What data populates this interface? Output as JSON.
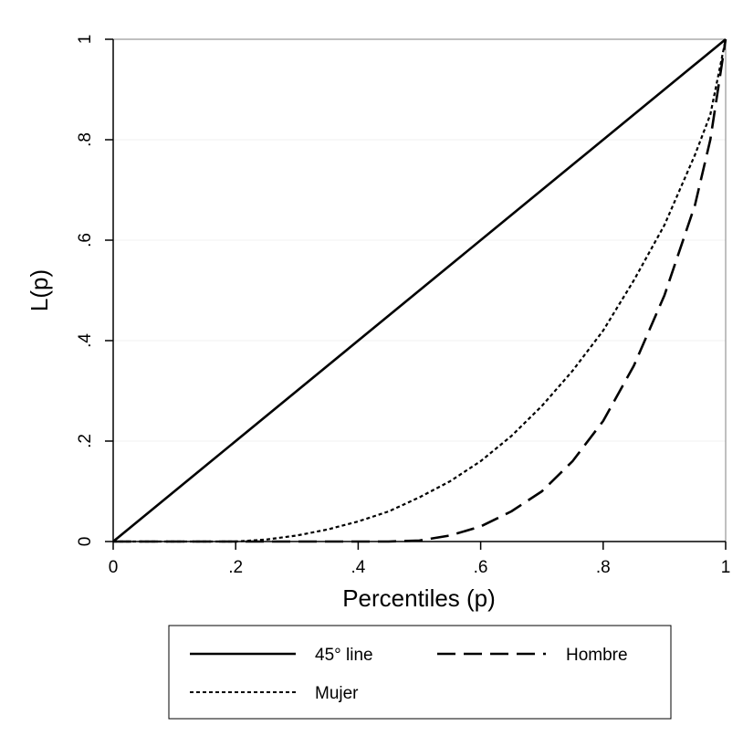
{
  "chart_data": {
    "type": "line",
    "xlabel": "Percentiles (p)",
    "ylabel": "L(p)",
    "xlim": [
      0,
      1
    ],
    "ylim": [
      0,
      1
    ],
    "grid": "horizontal",
    "legend_position": "bottom",
    "x_ticks": [
      {
        "value": 0,
        "label": "0"
      },
      {
        "value": 0.2,
        "label": ".2"
      },
      {
        "value": 0.4,
        "label": ".4"
      },
      {
        "value": 0.6,
        "label": ".6"
      },
      {
        "value": 0.8,
        "label": ".8"
      },
      {
        "value": 1,
        "label": "1"
      }
    ],
    "y_ticks": [
      {
        "value": 0,
        "label": "0"
      },
      {
        "value": 0.2,
        "label": ".2"
      },
      {
        "value": 0.4,
        "label": ".4"
      },
      {
        "value": 0.6,
        "label": ".6"
      },
      {
        "value": 0.8,
        "label": ".8"
      },
      {
        "value": 1,
        "label": "1"
      }
    ],
    "series": [
      {
        "name": "45° line",
        "style": "solid",
        "x": [
          0,
          1
        ],
        "y": [
          0,
          1
        ]
      },
      {
        "name": "Hombre",
        "style": "long-dash",
        "x": [
          0,
          0.45,
          0.5,
          0.55,
          0.6,
          0.65,
          0.7,
          0.75,
          0.8,
          0.85,
          0.9,
          0.95,
          0.975,
          1
        ],
        "y": [
          0,
          0,
          0.002,
          0.012,
          0.03,
          0.06,
          0.1,
          0.16,
          0.24,
          0.35,
          0.49,
          0.67,
          0.8,
          1
        ]
      },
      {
        "name": "Mujer",
        "style": "short-dash",
        "x": [
          0,
          0.2,
          0.25,
          0.3,
          0.35,
          0.4,
          0.45,
          0.5,
          0.55,
          0.6,
          0.65,
          0.7,
          0.75,
          0.8,
          0.85,
          0.9,
          0.95,
          0.975,
          1
        ],
        "y": [
          0,
          0,
          0.004,
          0.012,
          0.024,
          0.04,
          0.06,
          0.088,
          0.12,
          0.16,
          0.21,
          0.27,
          0.34,
          0.42,
          0.52,
          0.63,
          0.77,
          0.85,
          1
        ]
      }
    ]
  }
}
